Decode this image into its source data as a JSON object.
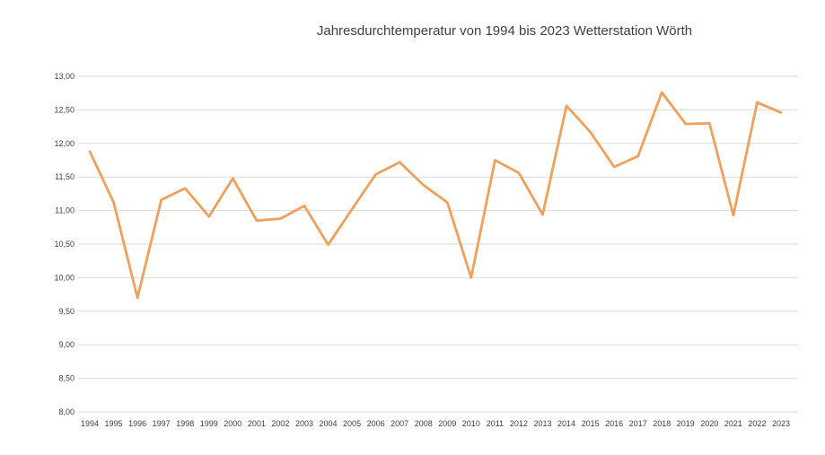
{
  "chart_data": {
    "type": "line",
    "title": "Jahresdurchtemperatur von 1994 bis 2023 Wetterstation Wörth",
    "xlabel": "",
    "ylabel": "",
    "x": [
      "1994",
      "1995",
      "1996",
      "1997",
      "1998",
      "1999",
      "2000",
      "2001",
      "2002",
      "2003",
      "2004",
      "2005",
      "2006",
      "2007",
      "2008",
      "2009",
      "2010",
      "2011",
      "2012",
      "2013",
      "2014",
      "2015",
      "2016",
      "2017",
      "2018",
      "2019",
      "2020",
      "2021",
      "2022",
      "2023"
    ],
    "series": [
      {
        "color": "#f0a05a",
        "values": [
          11.88,
          11.12,
          9.7,
          11.16,
          11.33,
          10.91,
          11.48,
          10.85,
          10.88,
          11.07,
          10.49,
          11.02,
          11.54,
          11.72,
          11.38,
          11.12,
          10.0,
          11.75,
          11.56,
          10.94,
          12.56,
          12.17,
          11.65,
          11.81,
          12.76,
          12.29,
          12.3,
          10.93,
          12.61,
          12.46
        ]
      }
    ],
    "ylim": [
      8.0,
      13.0
    ],
    "yticks": [
      "8,00",
      "8,50",
      "9,00",
      "9,50",
      "10,00",
      "10,50",
      "11,00",
      "11,50",
      "12,00",
      "12,50",
      "13,00"
    ],
    "grid": true,
    "legend": "none"
  }
}
